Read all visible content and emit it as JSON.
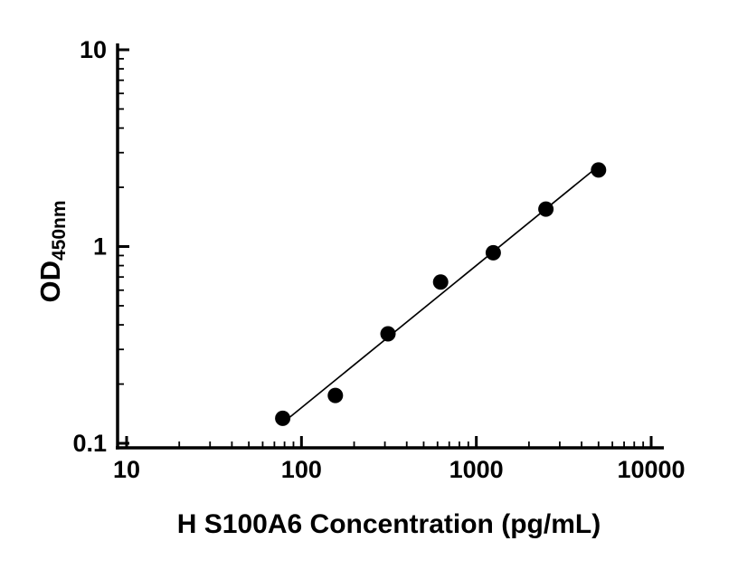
{
  "figure": {
    "background": "#ffffff",
    "axis_color": "#000000",
    "point_color": "#000000",
    "line_color": "#000000"
  },
  "chart_data": {
    "type": "scatter",
    "title": "",
    "xlabel": "H S100A6 Concentration (pg/mL)",
    "ylabel": "OD",
    "ylabel_sub": "450nm",
    "x_scale": "log",
    "y_scale": "log",
    "xlim": [
      10,
      10000
    ],
    "ylim": [
      0.1,
      10
    ],
    "x_ticks": [
      10,
      100,
      1000,
      10000
    ],
    "x_tick_labels": [
      "10",
      "100",
      "1000",
      "10000"
    ],
    "y_ticks": [
      0.1,
      1,
      10
    ],
    "y_tick_labels": [
      "0.1",
      "1",
      "10"
    ],
    "grid": false,
    "legend": null,
    "fit_line": "linear-loglog",
    "points": {
      "x": [
        78.125,
        156.25,
        312.5,
        625,
        1250,
        2500,
        5000
      ],
      "y": [
        0.134,
        0.175,
        0.36,
        0.66,
        0.93,
        1.55,
        2.45
      ]
    }
  }
}
